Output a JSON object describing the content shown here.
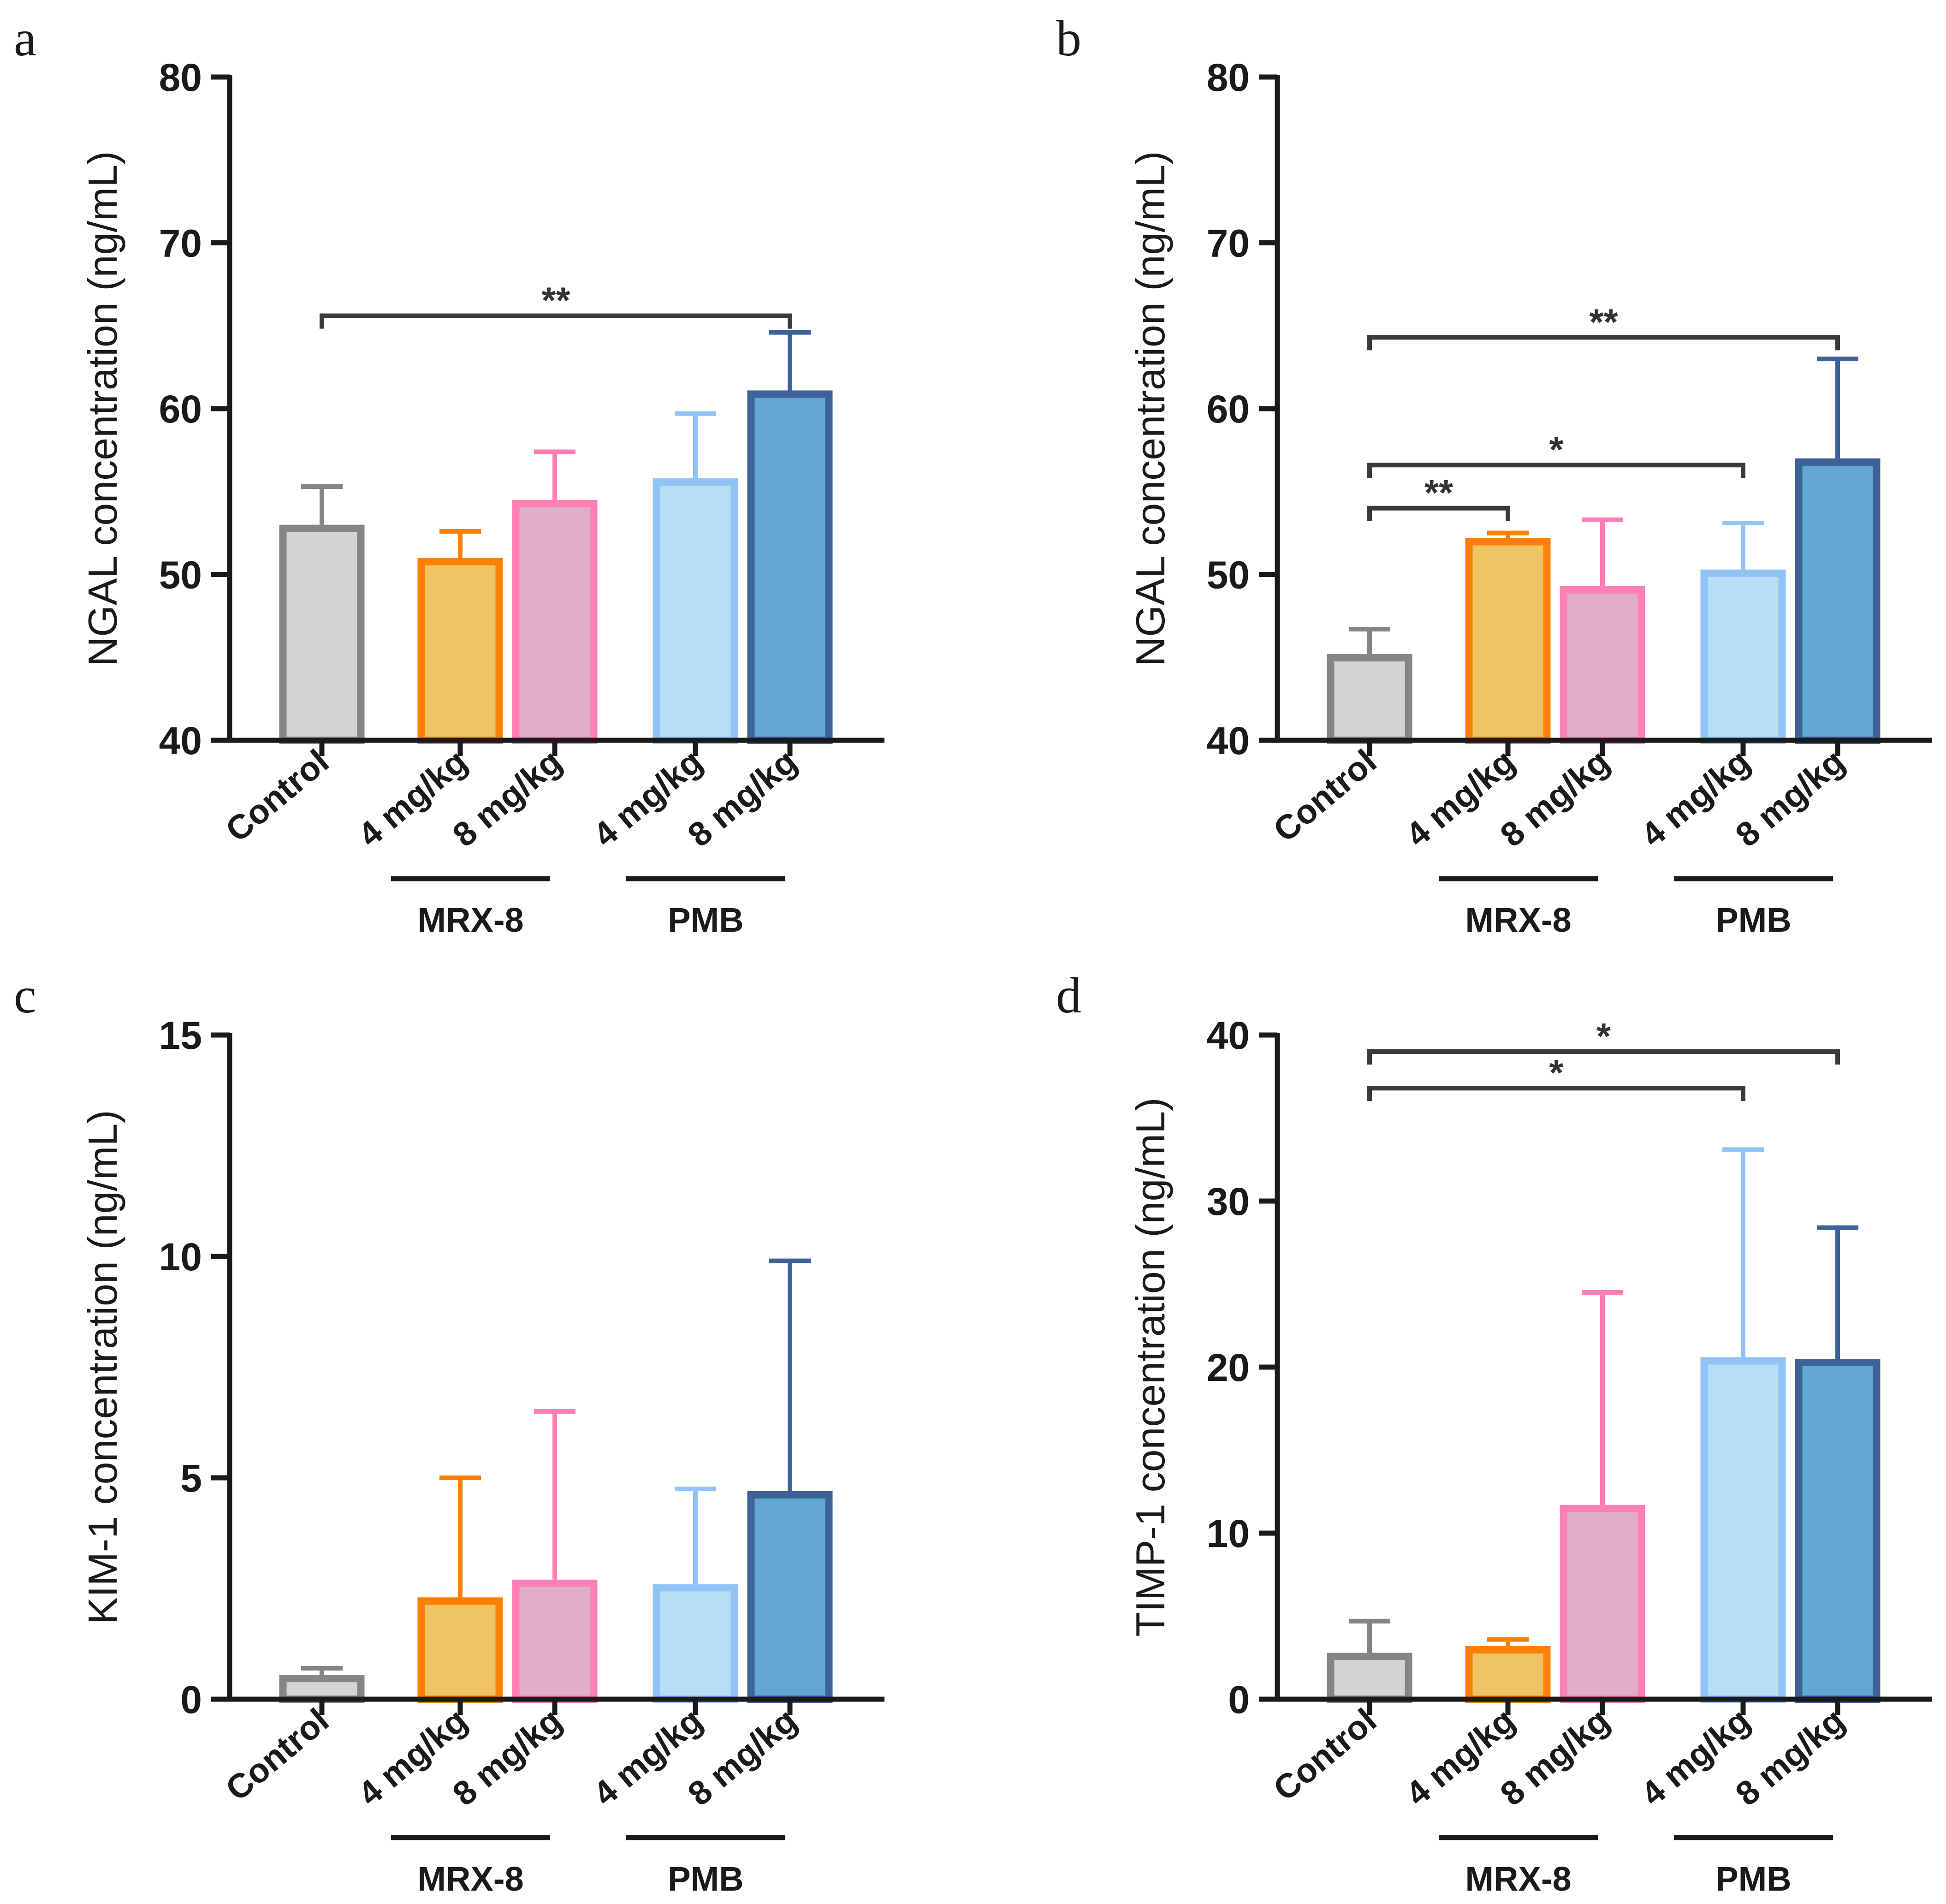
{
  "colors": {
    "Control": {
      "fill": "#d4d4d4",
      "edge": "#858585"
    },
    "MRX-8 4 mg/kg": {
      "fill": "#efc466",
      "edge": "#ff8000"
    },
    "MRX-8 8 mg/kg": {
      "fill": "#e0aec8",
      "edge": "#ff7fb6"
    },
    "PMB 4 mg/kg": {
      "fill": "#b7def5",
      "edge": "#91c4f5"
    },
    "PMB 8 mg/kg": {
      "fill": "#62a6d5",
      "edge": "#3d6299"
    }
  },
  "chart_data": [
    {
      "panel": "a",
      "type": "bar",
      "categories": [
        "Control",
        "4 mg/kg",
        "8 mg/kg",
        "4 mg/kg",
        "8 mg/kg"
      ],
      "groups": [
        {
          "label": "MRX-8",
          "members": [
            1,
            2
          ]
        },
        {
          "label": "PMB",
          "members": [
            3,
            4
          ]
        }
      ],
      "values": [
        53,
        51,
        54.5,
        55.8,
        61.1
      ],
      "errors": [
        2.3,
        1.6,
        2.9,
        3.9,
        3.5
      ],
      "ylabel": "NGAL concentration (ng/mL)",
      "ylim": [
        40,
        80
      ],
      "yticks": [
        40,
        50,
        60,
        70,
        80
      ],
      "significance": [
        {
          "from": 0,
          "to": 4,
          "label": "**",
          "y": 65.6
        }
      ]
    },
    {
      "panel": "b",
      "type": "bar",
      "categories": [
        "Control",
        "4 mg/kg",
        "8 mg/kg",
        "4 mg/kg",
        "8 mg/kg"
      ],
      "groups": [
        {
          "label": "MRX-8",
          "members": [
            1,
            2
          ]
        },
        {
          "label": "PMB",
          "members": [
            3,
            4
          ]
        }
      ],
      "values": [
        45.2,
        52.2,
        49.3,
        50.3,
        57
      ],
      "errors": [
        1.5,
        0.3,
        4,
        2.8,
        6
      ],
      "ylabel": "NGAL concentration (ng/mL)",
      "ylim": [
        40,
        80
      ],
      "yticks": [
        40,
        50,
        60,
        70,
        80
      ],
      "significance": [
        {
          "from": 0,
          "to": 1,
          "label": "**",
          "y": 54
        },
        {
          "from": 0,
          "to": 3,
          "label": "*",
          "y": 56.6
        },
        {
          "from": 0,
          "to": 4,
          "label": "**",
          "y": 64.3
        }
      ]
    },
    {
      "panel": "c",
      "type": "bar",
      "categories": [
        "Control",
        "4 mg/kg",
        "8 mg/kg",
        "4 mg/kg",
        "8 mg/kg"
      ],
      "groups": [
        {
          "label": "MRX-8",
          "members": [
            1,
            2
          ]
        },
        {
          "label": "PMB",
          "members": [
            3,
            4
          ]
        }
      ],
      "values": [
        0.55,
        2.3,
        2.7,
        2.6,
        4.7
      ],
      "errors": [
        0.15,
        2.7,
        3.8,
        2.15,
        5.2
      ],
      "ylabel": "KIM-1 concentration (ng/mL)",
      "ylim": [
        0,
        15
      ],
      "yticks": [
        0,
        5,
        10,
        15
      ],
      "significance": []
    },
    {
      "panel": "d",
      "type": "bar",
      "categories": [
        "Control",
        "4 mg/kg",
        "8 mg/kg",
        "4 mg/kg",
        "8 mg/kg"
      ],
      "groups": [
        {
          "label": "MRX-8",
          "members": [
            1,
            2
          ]
        },
        {
          "label": "PMB",
          "members": [
            3,
            4
          ]
        }
      ],
      "values": [
        2.8,
        3.2,
        11.7,
        20.6,
        20.5
      ],
      "errors": [
        1.9,
        0.4,
        12.8,
        12.5,
        7.9
      ],
      "ylabel": "TIMP-1 concentration (ng/mL)",
      "ylim": [
        0,
        40
      ],
      "yticks": [
        0,
        10,
        20,
        30,
        40
      ],
      "significance": [
        {
          "from": 0,
          "to": 3,
          "label": "*",
          "y": 36.8
        },
        {
          "from": 0,
          "to": 4,
          "label": "*",
          "y": 39
        }
      ]
    }
  ]
}
